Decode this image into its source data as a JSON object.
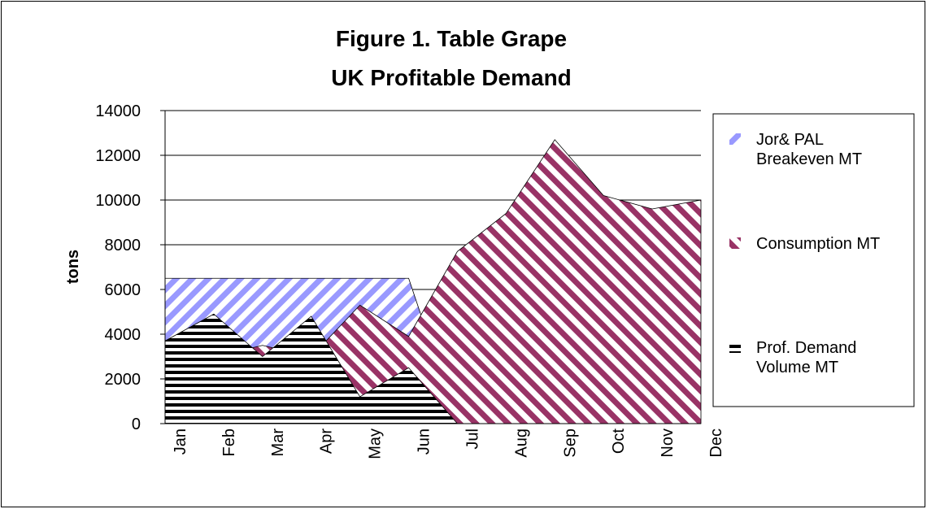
{
  "chart_data": {
    "type": "area",
    "title": [
      "Figure 1. Table Grape",
      "UK Profitable Demand"
    ],
    "ylabel": "tons",
    "categories": [
      "Jan",
      "Feb",
      "Mar",
      "Apr",
      "May",
      "Jun",
      "Jul",
      "Aug",
      "Sep",
      "Oct",
      "Nov",
      "Dec"
    ],
    "series": [
      {
        "name": "Jor& PAL Breakeven MT",
        "color": "#9999ff",
        "values": [
          6500,
          6500,
          6500,
          6500,
          6500,
          6500,
          0,
          0,
          0,
          0,
          0,
          0
        ]
      },
      {
        "name": "Consumption MT",
        "color": "#993366",
        "values": [
          3000,
          3000,
          3500,
          3000,
          5300,
          3900,
          7700,
          9400,
          12700,
          10200,
          9600,
          10000
        ]
      },
      {
        "name": "Prof. Demand Volume MT",
        "color": "#000000",
        "values": [
          3700,
          4900,
          3000,
          4800,
          1200,
          2500,
          0,
          0,
          0,
          0,
          0,
          0
        ]
      }
    ],
    "ylim": [
      0,
      14000
    ],
    "yticks": [
      0,
      2000,
      4000,
      6000,
      8000,
      10000,
      12000,
      14000
    ],
    "grid": true
  }
}
